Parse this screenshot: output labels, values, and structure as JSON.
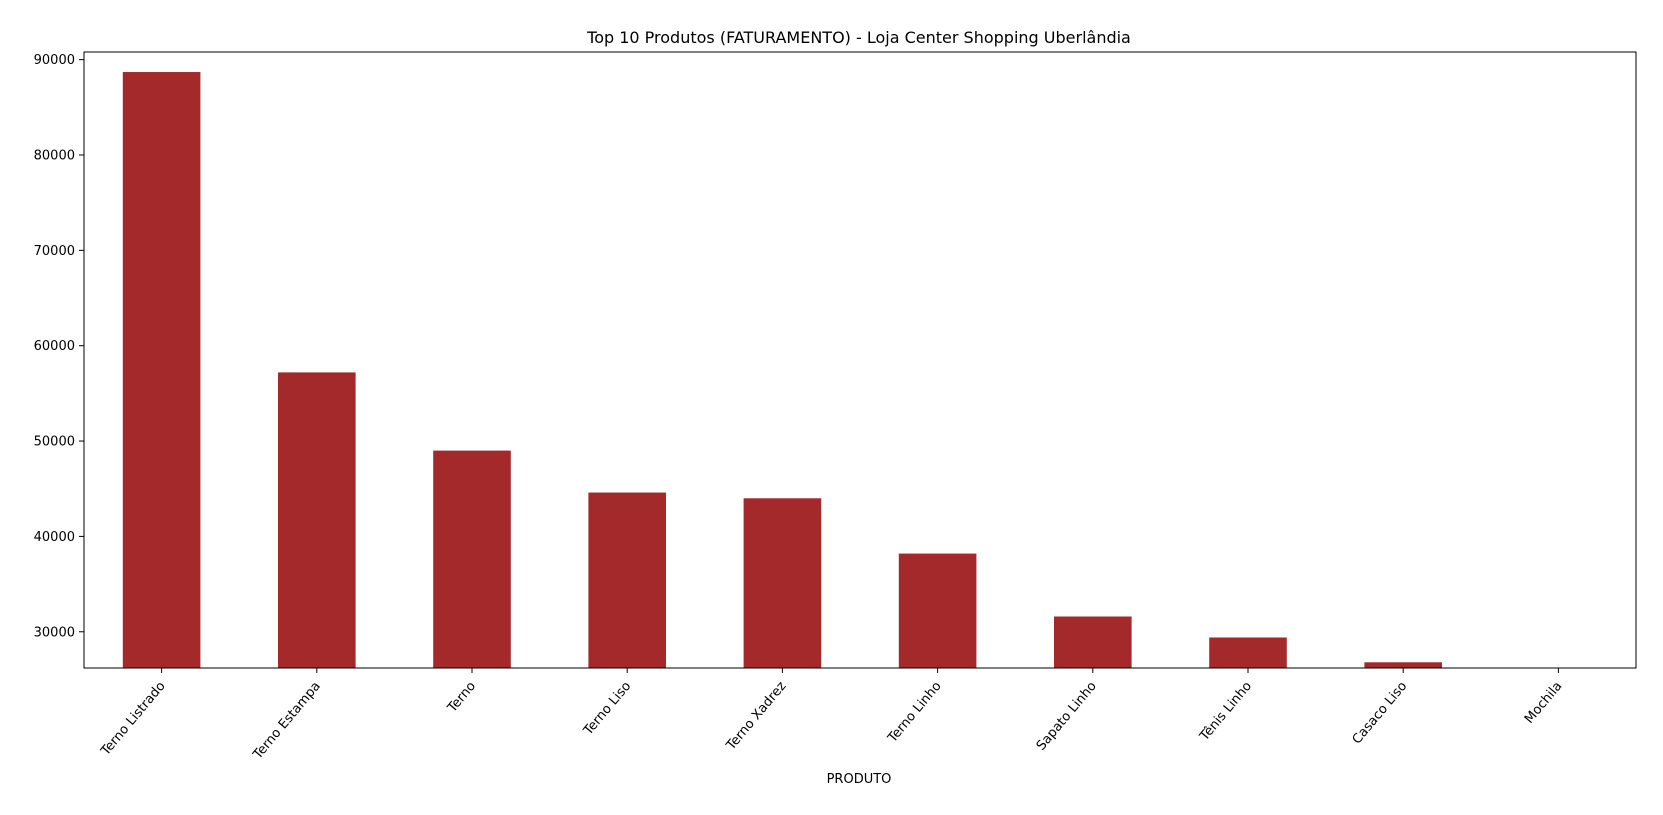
{
  "chart_data": {
    "type": "bar",
    "title": "Top 10 Produtos (FATURAMENTO) - Loja Center Shopping Uberlândia",
    "xlabel": "PRODUTO",
    "ylabel": "",
    "categories": [
      "Terno Listrado",
      "Terno Estampa",
      "Terno",
      "Terno Liso",
      "Terno Xadrez",
      "Terno Linho",
      "Sapato Linho",
      "Tênis Linho",
      "Casaco Liso",
      "Mochila"
    ],
    "values": [
      88700,
      57200,
      49000,
      44600,
      44000,
      38200,
      31600,
      29400,
      26800,
      26100
    ],
    "ylim": [
      26200,
      90800
    ],
    "yticks": [
      30000,
      40000,
      50000,
      60000,
      70000,
      80000,
      90000
    ],
    "bar_color": "#a3292b",
    "grid": false,
    "legend": "none"
  }
}
